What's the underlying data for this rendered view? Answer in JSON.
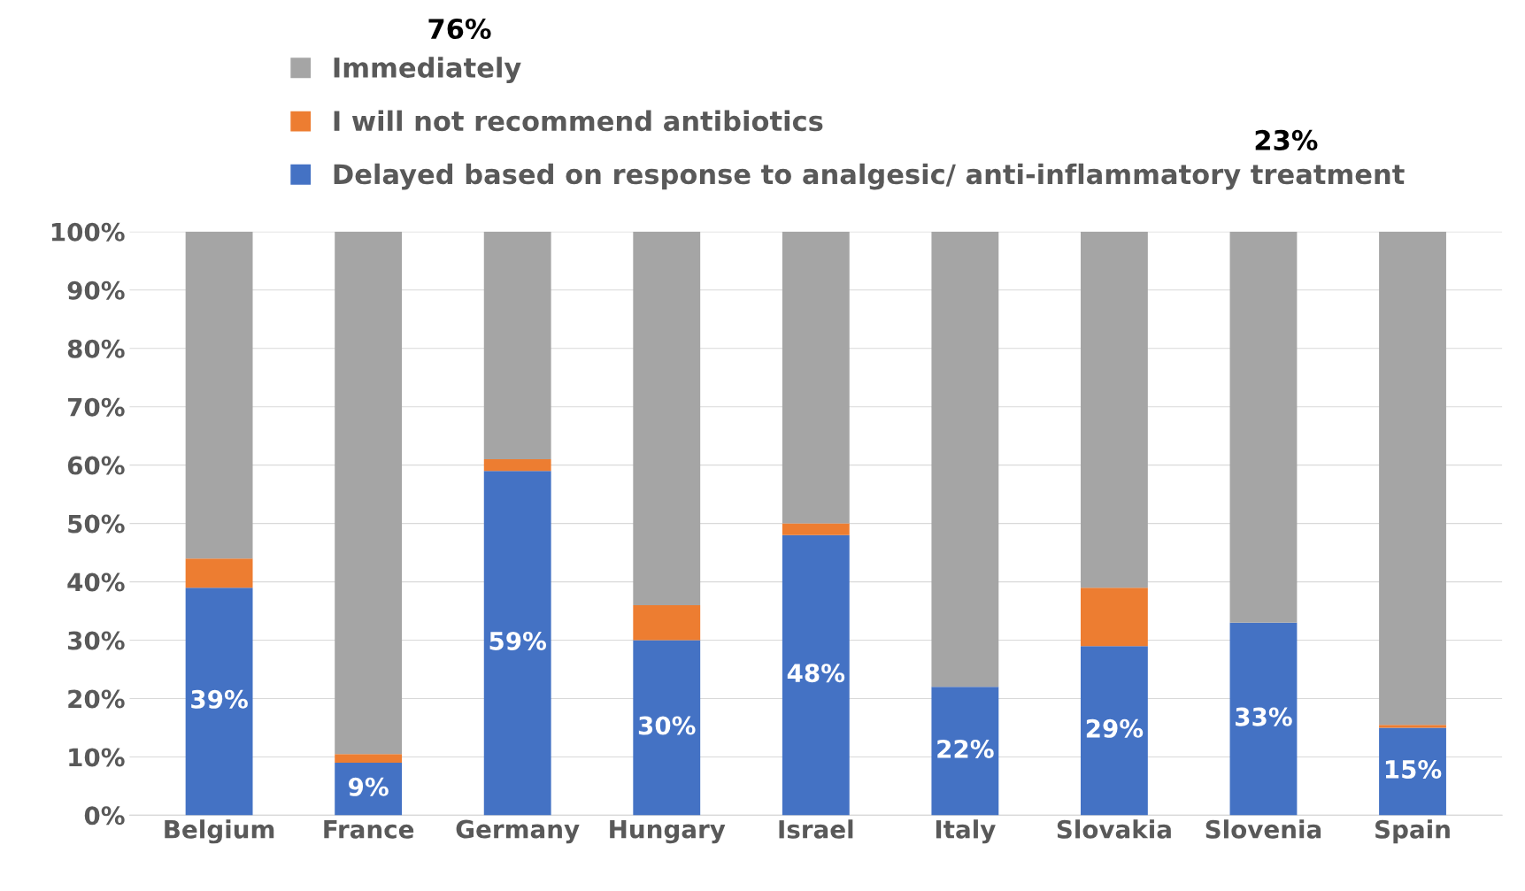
{
  "chart_data": {
    "type": "bar",
    "stacked": true,
    "categories": [
      "Belgium",
      "France",
      "Germany",
      "Hungary",
      "Israel",
      "Italy",
      "Slovakia",
      "Slovenia",
      "Spain"
    ],
    "series": [
      {
        "name": "Delayed based on response to analgesic/ anti-inflammatory treatment",
        "color": "#4472c4",
        "values": [
          39,
          9,
          59,
          30,
          48,
          22,
          29,
          33,
          15
        ],
        "value_labels": [
          "39%",
          "9%",
          "59%",
          "30%",
          "48%",
          "22%",
          "29%",
          "33%",
          "15%"
        ]
      },
      {
        "name": "I will not recommend antibiotics",
        "color": "#ed7d31",
        "values": [
          5,
          1.5,
          2,
          6,
          2,
          0,
          10,
          0,
          0.5
        ]
      },
      {
        "name": "Immediately",
        "color": "#a5a5a5",
        "values": [
          56,
          89.5,
          39,
          64,
          50,
          78,
          61,
          67,
          84.5
        ]
      }
    ],
    "ylim": [
      0,
      100
    ],
    "yticks": [
      {
        "value": 0,
        "label": "0%"
      },
      {
        "value": 10,
        "label": "10%"
      },
      {
        "value": 20,
        "label": "20%"
      },
      {
        "value": 30,
        "label": "30%"
      },
      {
        "value": 40,
        "label": "40%"
      },
      {
        "value": 50,
        "label": "50%"
      },
      {
        "value": 60,
        "label": "60%"
      },
      {
        "value": 70,
        "label": "70%"
      },
      {
        "value": 80,
        "label": "80%"
      },
      {
        "value": 90,
        "label": "90%"
      },
      {
        "value": 100,
        "label": "100%"
      }
    ],
    "grid": "y",
    "legend": "top",
    "annotations": [
      "76%",
      "23%"
    ]
  }
}
